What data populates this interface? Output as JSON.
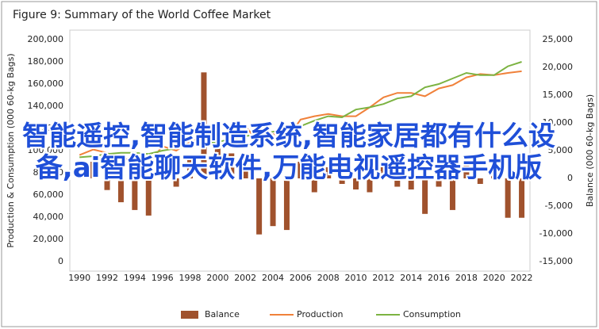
{
  "chart_data": {
    "type": "combo",
    "title": "Figure 9: Summary of the World Coffee Market",
    "y_label": "Production & Consumption (000 60-kg Bags)",
    "y2_label": "Balance (000 60-kg Bags)",
    "x": [
      1990,
      1991,
      1992,
      1993,
      1994,
      1995,
      1996,
      1997,
      1998,
      1999,
      2000,
      2001,
      2002,
      2003,
      2004,
      2005,
      2006,
      2007,
      2008,
      2009,
      2010,
      2011,
      2012,
      2013,
      2014,
      2015,
      2016,
      2017,
      2018,
      2019,
      2020,
      2021,
      2022
    ],
    "xlim": [
      1989.3,
      2022.6
    ],
    "xticks": [
      1990,
      1992,
      1994,
      1996,
      1998,
      2000,
      2002,
      2004,
      2006,
      2008,
      2010,
      2012,
      2014,
      2016,
      2018,
      2020,
      2022
    ],
    "ylim": [
      0,
      200000
    ],
    "yticks": [
      0,
      {
        "value": 20000,
        "label": "20,000"
      },
      {
        "value": 40000,
        "label": "40,000"
      },
      {
        "value": 60000,
        "label": "60,000"
      },
      {
        "value": 80000,
        "label": "80,000"
      },
      {
        "value": 100000,
        "label": "100,000"
      },
      {
        "value": 120000,
        "label": "120,000"
      },
      {
        "value": 140000,
        "label": "140,000"
      },
      {
        "value": 160000,
        "label": "160,000"
      },
      {
        "value": 180000,
        "label": "180,000"
      },
      {
        "value": 200000,
        "label": "200,000"
      }
    ],
    "y2lim": [
      -15000,
      25000
    ],
    "y2ticks": [
      {
        "value": -15000,
        "label": "-15,000"
      },
      {
        "value": -10000,
        "label": "-10,000"
      },
      {
        "value": -5000,
        "label": "-5,000"
      },
      0,
      {
        "value": 5000,
        "label": "5,000"
      },
      {
        "value": 10000,
        "label": "10,000"
      },
      {
        "value": 15000,
        "label": "15,000"
      },
      {
        "value": 20000,
        "label": "20,000"
      },
      {
        "value": 25000,
        "label": "25,000"
      }
    ],
    "grid": false,
    "legend": "bottom",
    "series": [
      {
        "name": "Balance",
        "type": "bar",
        "axis": "y2",
        "color": "#a0522d",
        "values": [
          2000,
          3000,
          -2100,
          -4300,
          -5700,
          -6700,
          1500,
          -1500,
          3500,
          19100,
          6000,
          4500,
          2500,
          -10100,
          -8600,
          -9300,
          3000,
          -2500,
          2000,
          -1000,
          -2000,
          -2500,
          3000,
          -1500,
          -2000,
          -6400,
          -1500,
          -5700,
          2500,
          -1000,
          2000,
          -7100,
          -7100
        ]
      },
      {
        "name": "Production",
        "type": "line",
        "color": "#f0813a",
        "values": [
          96000,
          101000,
          98000,
          92000,
          94000,
          88000,
          104000,
          100000,
          108000,
          112000,
          115000,
          112000,
          122000,
          107000,
          115000,
          110000,
          128000,
          131000,
          133000,
          131000,
          131000,
          139000,
          148000,
          152000,
          152000,
          149000,
          156000,
          159000,
          166000,
          169000,
          168000,
          170000,
          171500
        ]
      },
      {
        "name": "Consumption",
        "type": "line",
        "color": "#7cb342",
        "values": [
          94000,
          95000,
          97000,
          98000,
          98000,
          97000,
          100000,
          102000,
          104000,
          106000,
          108000,
          110000,
          113000,
          115000,
          117000,
          119000,
          122000,
          127000,
          131000,
          130000,
          137000,
          139000,
          142000,
          147000,
          149000,
          157000,
          160000,
          165000,
          170000,
          168000,
          168000,
          176000,
          180000
        ]
      }
    ]
  },
  "overlay": {
    "text": "智能遥控,智能制造系统,智能家居都有什么设备,ai智能聊天软件,万能电视遥控器手机版"
  }
}
